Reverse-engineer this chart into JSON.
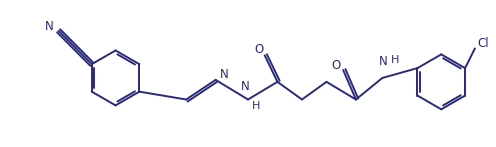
{
  "bg_color": "#ffffff",
  "line_color": "#2a2a7a",
  "line_width": 1.4,
  "figsize": [
    4.96,
    1.47
  ],
  "dpi": 100,
  "atoms": {
    "N_label": "N",
    "O1_label": "O",
    "O2_label": "O",
    "NH1_label": "NH",
    "NH2_label": "H",
    "N2_label": "N",
    "Cl_label": "Cl"
  }
}
